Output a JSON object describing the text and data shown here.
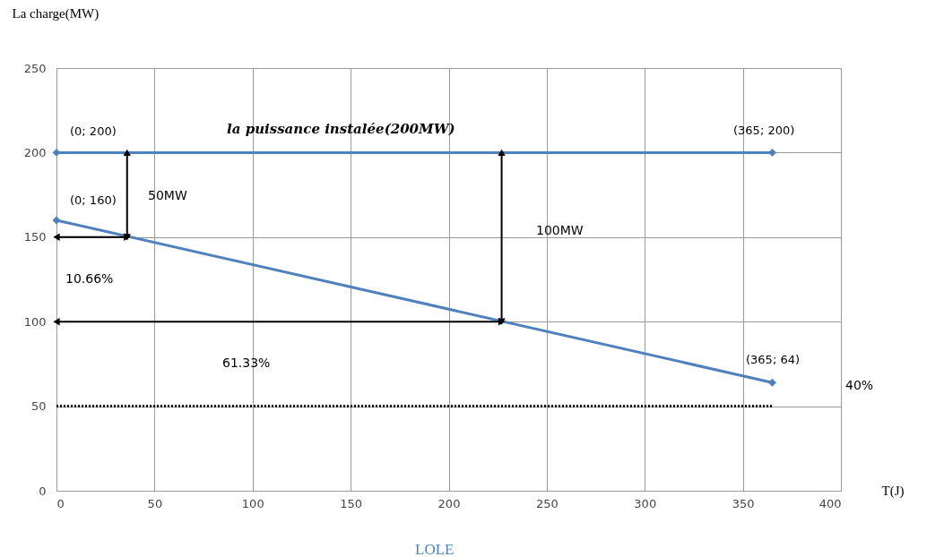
{
  "chart_data": {
    "type": "line",
    "xlabel": "T(J)",
    "ylabel": "La charge(MW)",
    "xlim": [
      0,
      400
    ],
    "xticks": [
      0,
      50,
      100,
      150,
      200,
      250,
      300,
      350,
      400
    ],
    "ylim": [
      0,
      250
    ],
    "yticks": [
      0,
      50,
      100,
      150,
      200,
      250
    ],
    "grid": true,
    "legend": false,
    "marker": "diamond",
    "line_style": "solid",
    "series": [
      {
        "name": "la puissance instalée(200MW)",
        "color": "#4f81bd",
        "x": [
          0,
          365
        ],
        "values": [
          200,
          200
        ]
      },
      {
        "color": "#4f81bd",
        "x": [
          0,
          365
        ],
        "values": [
          160,
          64
        ]
      },
      {
        "color": "#000000",
        "x": [
          0,
          365
        ],
        "values": [
          50,
          50
        ],
        "marker": "none",
        "line_style": "dotted"
      },
      {
        "color": "#000000",
        "x": [
          36,
          36
        ],
        "values": [
          150,
          200
        ],
        "marker": "triangle"
      },
      {
        "color": "#000000",
        "x": [
          0,
          36
        ],
        "values": [
          150,
          150
        ],
        "marker": "triangle"
      },
      {
        "color": "#000000",
        "x": [
          227,
          227
        ],
        "values": [
          100,
          200
        ],
        "marker": "triangle"
      },
      {
        "color": "#000000",
        "x": [
          0,
          227
        ],
        "values": [
          100,
          100
        ],
        "marker": "triangle"
      }
    ],
    "annotations": [
      "(0; 200)",
      "(365; 200)",
      "(0; 160)",
      "(365; 64)",
      "50MW",
      "100MW",
      "10.66%",
      "61.33%",
      "40%",
      "LOLE"
    ]
  }
}
